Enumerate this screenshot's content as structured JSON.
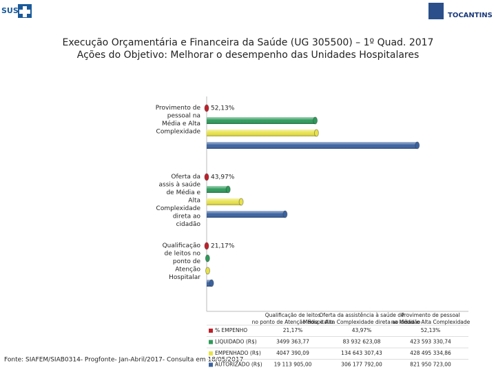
{
  "header": {
    "logo_left": "SUS",
    "logo_right": "TOCANTINS"
  },
  "chart_data": {
    "type": "bar",
    "orientation": "horizontal",
    "title": "Execução Orçamentária e Financeira da Saúde (UG 305500) – 1º Quad. 2017",
    "subtitle": "Ações do Objetivo: Melhorar o desempenho das Unidades Hospitalares",
    "categories": [
      "Qualificação de leitos no ponto de Atenção Hospitalar",
      "Oferta da assistência à saúde de Média e Alta Complexidade direta ao cidadão",
      "Provimento de pessoal na Média e Alta Complexidade"
    ],
    "axis_category_labels": [
      "Qualificação de leitos no ponto de Atenção Hospitalar",
      "Oferta da assis à saúde de Média e Alta Complexidade direta ao cidadão",
      "Provimento de pessoal na Média e Alta Complexidade"
    ],
    "xlim": [
      0,
      1000000000
    ],
    "series": [
      {
        "name": "% EMPENHO",
        "color": "#c0202a",
        "values": [
          21.17,
          43.97,
          52.13
        ],
        "value_labels": [
          "21,17%",
          "43,97%",
          "52,13%"
        ]
      },
      {
        "name": "LIQUIDADO (R$)",
        "color": "#2e9a5a",
        "values": [
          3499363.77,
          83932623.08,
          423593330.74
        ],
        "value_labels": [
          "3499 363,77",
          "83 932 623,08",
          "423 593 330,74"
        ]
      },
      {
        "name": "EMPENHADO (R$)",
        "color": "#e8e24a",
        "values": [
          4047390.09,
          134643307.43,
          428495334.86
        ],
        "value_labels": [
          "4047 390,09",
          "134 643 307,43",
          "428 495 334,86"
        ]
      },
      {
        "name": "AUTORIZADO (R$)",
        "color": "#3a62a0",
        "values": [
          19113905.0,
          306177792.0,
          821950723.0
        ],
        "value_labels": [
          "19 113 905,00",
          "306 177 792,00",
          "821 950 723,00"
        ]
      }
    ]
  },
  "footer": "Fonte: SIAFEM/SIAB0314- Progfonte- Jan-Abril/2017- Consulta em 18/05/2017"
}
